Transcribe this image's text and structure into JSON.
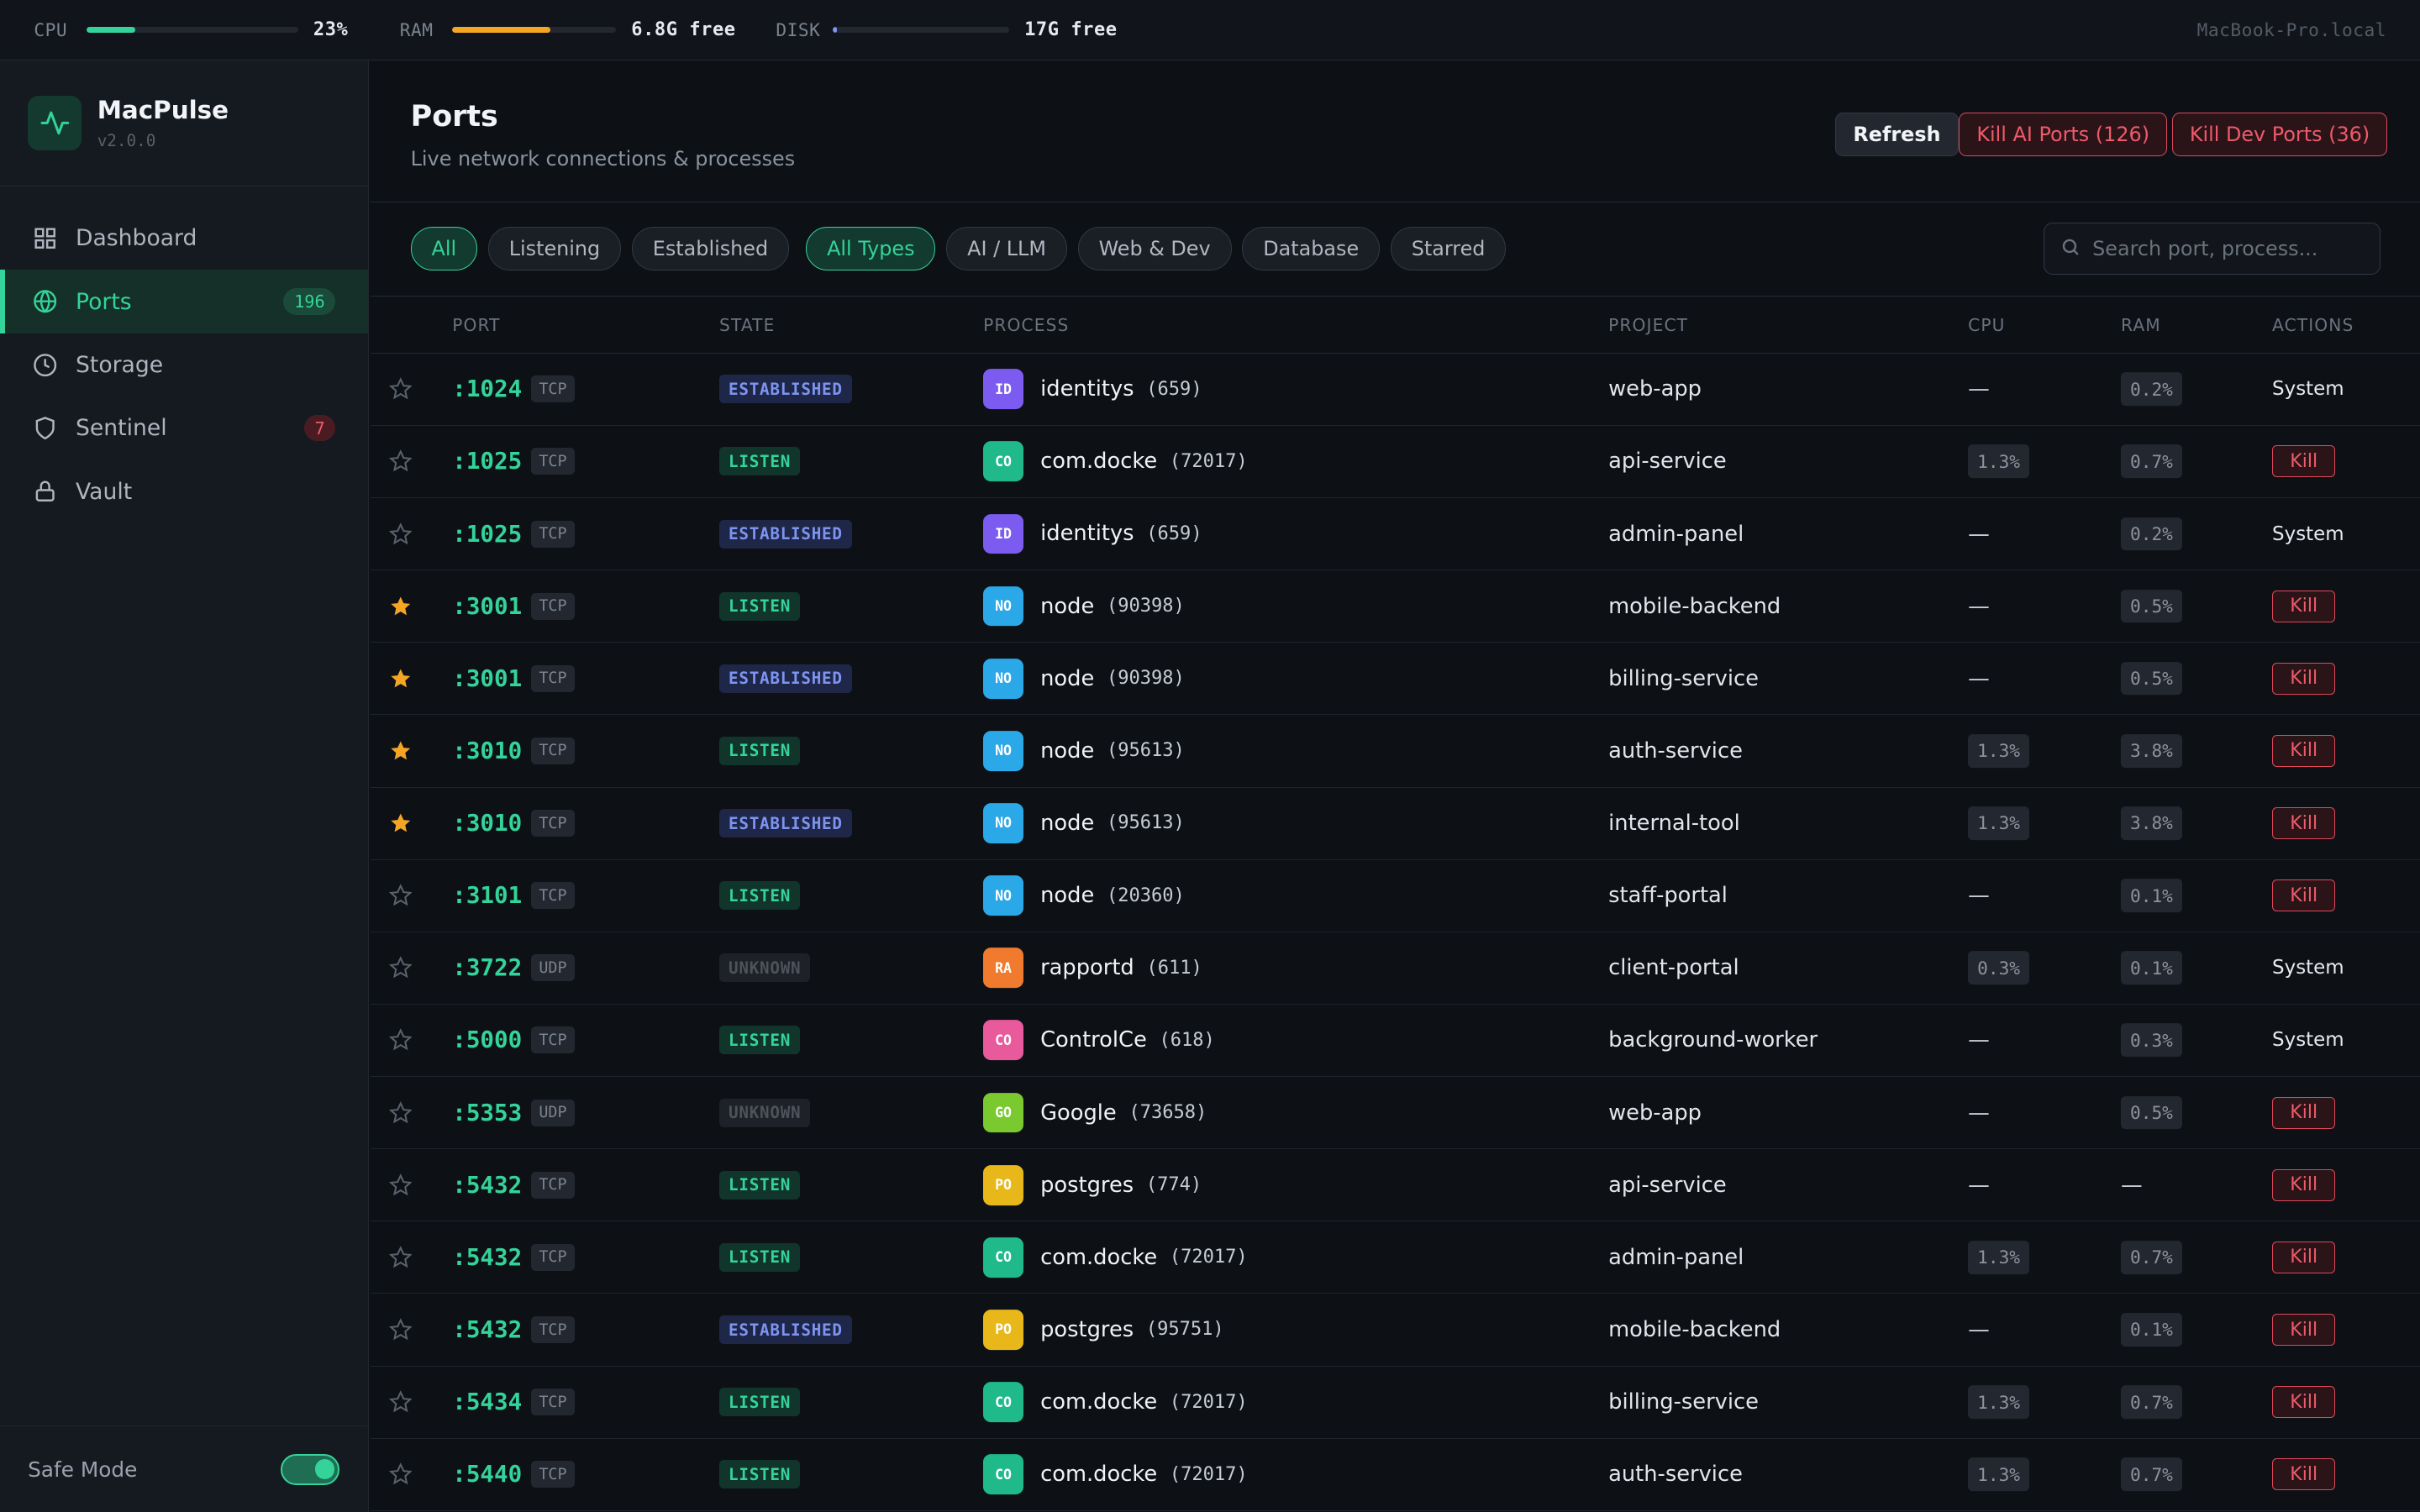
{
  "topbar": {
    "cpu": {
      "label": "CPU",
      "value": "23%",
      "fill": 0.23,
      "color": "#34d399"
    },
    "ram": {
      "label": "RAM",
      "value": "6.8G free",
      "fill": 0.6,
      "color": "#f5a524"
    },
    "disk": {
      "label": "DISK",
      "value": "17G free",
      "fill": 0.02,
      "color": "#7e94f0"
    },
    "hostname": "MacBook-Pro.local"
  },
  "brand": {
    "name": "MacPulse",
    "version": "v2.0.0"
  },
  "sidebar": {
    "items": [
      {
        "label": "Dashboard",
        "icon": "grid-icon",
        "badge": ""
      },
      {
        "label": "Ports",
        "icon": "globe-icon",
        "badge": "196"
      },
      {
        "label": "Storage",
        "icon": "clock-icon",
        "badge": ""
      },
      {
        "label": "Sentinel",
        "icon": "shield-icon",
        "badge": "7"
      },
      {
        "label": "Vault",
        "icon": "lock-icon",
        "badge": ""
      }
    ],
    "safe_mode_label": "Safe Mode"
  },
  "header": {
    "title": "Ports",
    "subtitle": "Live network connections & processes",
    "refresh": "Refresh",
    "kill_ai": "Kill AI Ports (126)",
    "kill_dev": "Kill Dev Ports (36)"
  },
  "filters": {
    "state": [
      "All",
      "Listening",
      "Established"
    ],
    "type": [
      "All Types",
      "AI / LLM",
      "Web & Dev",
      "Database",
      "Starred"
    ],
    "search_placeholder": "Search port, process..."
  },
  "table": {
    "columns": [
      "PORT",
      "STATE",
      "PROCESS",
      "PROJECT",
      "CPU",
      "RAM",
      "ACTIONS"
    ],
    "rows": [
      {
        "starred": false,
        "port": ":1024",
        "proto": "TCP",
        "state": "ESTABLISHED",
        "abbr": "ID",
        "avatar_color": "#7c5cf0",
        "process": "identitys",
        "pid": "(659)",
        "project": "web-app",
        "cpu": "—",
        "ram": "0.2%",
        "action": "System"
      },
      {
        "starred": false,
        "port": ":1025",
        "proto": "TCP",
        "state": "LISTEN",
        "abbr": "CO",
        "avatar_color": "#1fb98a",
        "process": "com.docke",
        "pid": "(72017)",
        "project": "api-service",
        "cpu": "1.3%",
        "ram": "0.7%",
        "action": "Kill"
      },
      {
        "starred": false,
        "port": ":1025",
        "proto": "TCP",
        "state": "ESTABLISHED",
        "abbr": "ID",
        "avatar_color": "#7c5cf0",
        "process": "identitys",
        "pid": "(659)",
        "project": "admin-panel",
        "cpu": "—",
        "ram": "0.2%",
        "action": "System"
      },
      {
        "starred": true,
        "port": ":3001",
        "proto": "TCP",
        "state": "LISTEN",
        "abbr": "NO",
        "avatar_color": "#2ba8e8",
        "process": "node",
        "pid": "(90398)",
        "project": "mobile-backend",
        "cpu": "—",
        "ram": "0.5%",
        "action": "Kill"
      },
      {
        "starred": true,
        "port": ":3001",
        "proto": "TCP",
        "state": "ESTABLISHED",
        "abbr": "NO",
        "avatar_color": "#2ba8e8",
        "process": "node",
        "pid": "(90398)",
        "project": "billing-service",
        "cpu": "—",
        "ram": "0.5%",
        "action": "Kill"
      },
      {
        "starred": true,
        "port": ":3010",
        "proto": "TCP",
        "state": "LISTEN",
        "abbr": "NO",
        "avatar_color": "#2ba8e8",
        "process": "node",
        "pid": "(95613)",
        "project": "auth-service",
        "cpu": "1.3%",
        "ram": "3.8%",
        "action": "Kill"
      },
      {
        "starred": true,
        "port": ":3010",
        "proto": "TCP",
        "state": "ESTABLISHED",
        "abbr": "NO",
        "avatar_color": "#2ba8e8",
        "process": "node",
        "pid": "(95613)",
        "project": "internal-tool",
        "cpu": "1.3%",
        "ram": "3.8%",
        "action": "Kill"
      },
      {
        "starred": false,
        "port": ":3101",
        "proto": "TCP",
        "state": "LISTEN",
        "abbr": "NO",
        "avatar_color": "#2ba8e8",
        "process": "node",
        "pid": "(20360)",
        "project": "staff-portal",
        "cpu": "—",
        "ram": "0.1%",
        "action": "Kill"
      },
      {
        "starred": false,
        "port": ":3722",
        "proto": "UDP",
        "state": "UNKNOWN",
        "abbr": "RA",
        "avatar_color": "#f07a2e",
        "process": "rapportd",
        "pid": "(611)",
        "project": "client-portal",
        "cpu": "0.3%",
        "ram": "0.1%",
        "action": "System"
      },
      {
        "starred": false,
        "port": ":5000",
        "proto": "TCP",
        "state": "LISTEN",
        "abbr": "CO",
        "avatar_color": "#e85a9c",
        "process": "ControlCe",
        "pid": "(618)",
        "project": "background-worker",
        "cpu": "—",
        "ram": "0.3%",
        "action": "System"
      },
      {
        "starred": false,
        "port": ":5353",
        "proto": "UDP",
        "state": "UNKNOWN",
        "abbr": "GO",
        "avatar_color": "#7ac92e",
        "process": "Google",
        "pid": "(73658)",
        "project": "web-app",
        "cpu": "—",
        "ram": "0.5%",
        "action": "Kill"
      },
      {
        "starred": false,
        "port": ":5432",
        "proto": "TCP",
        "state": "LISTEN",
        "abbr": "PO",
        "avatar_color": "#e8b81a",
        "process": "postgres",
        "pid": "(774)",
        "project": "api-service",
        "cpu": "—",
        "ram": "—",
        "action": "Kill"
      },
      {
        "starred": false,
        "port": ":5432",
        "proto": "TCP",
        "state": "LISTEN",
        "abbr": "CO",
        "avatar_color": "#1fb98a",
        "process": "com.docke",
        "pid": "(72017)",
        "project": "admin-panel",
        "cpu": "1.3%",
        "ram": "0.7%",
        "action": "Kill"
      },
      {
        "starred": false,
        "port": ":5432",
        "proto": "TCP",
        "state": "ESTABLISHED",
        "abbr": "PO",
        "avatar_color": "#e8b81a",
        "process": "postgres",
        "pid": "(95751)",
        "project": "mobile-backend",
        "cpu": "—",
        "ram": "0.1%",
        "action": "Kill"
      },
      {
        "starred": false,
        "port": ":5434",
        "proto": "TCP",
        "state": "LISTEN",
        "abbr": "CO",
        "avatar_color": "#1fb98a",
        "process": "com.docke",
        "pid": "(72017)",
        "project": "billing-service",
        "cpu": "1.3%",
        "ram": "0.7%",
        "action": "Kill"
      },
      {
        "starred": false,
        "port": ":5440",
        "proto": "TCP",
        "state": "LISTEN",
        "abbr": "CO",
        "avatar_color": "#1fb98a",
        "process": "com.docke",
        "pid": "(72017)",
        "project": "auth-service",
        "cpu": "1.3%",
        "ram": "0.7%",
        "action": "Kill"
      }
    ]
  }
}
